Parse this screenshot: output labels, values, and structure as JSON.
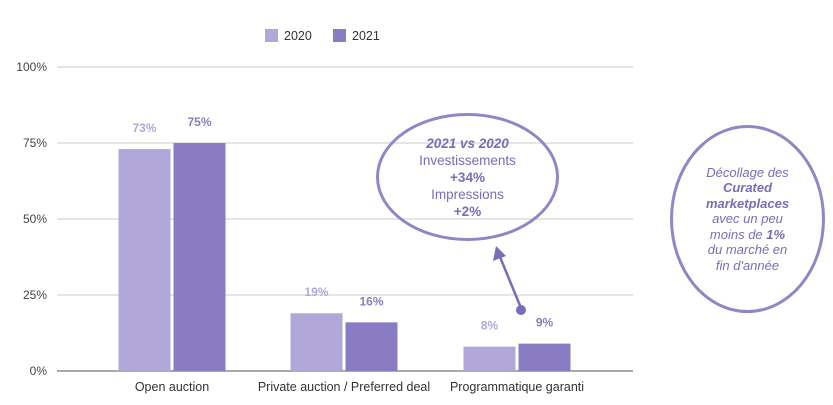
{
  "chart_data": {
    "type": "bar",
    "categories": [
      "Open auction",
      "Private auction / Preferred deal",
      "Programmatique garanti"
    ],
    "series": [
      {
        "name": "2020",
        "values": [
          73,
          19,
          8
        ],
        "labels": [
          "73%",
          "19%",
          "8%"
        ]
      },
      {
        "name": "2021",
        "values": [
          75,
          16,
          9
        ],
        "labels": [
          "75%",
          "16%",
          "9%"
        ]
      }
    ],
    "ylim": [
      0,
      100
    ],
    "yticks": [
      0,
      25,
      50,
      75,
      100
    ],
    "ytick_labels": [
      "0%",
      "25%",
      "50%",
      "75%",
      "100%"
    ],
    "legend_position": "top-center",
    "grid": true,
    "colors": {
      "2020": "#b2a7d9",
      "2021": "#8a7cc2",
      "label_2020": "#b2a7d9",
      "label_2021": "#8a7cc2"
    }
  },
  "callouts": {
    "compare": {
      "title": "2021 vs 2020",
      "line1": "Investissements",
      "line2": "+34%",
      "line3": "Impressions",
      "line4": "+2%"
    },
    "curated": {
      "l1": "Décollage des",
      "l2": "Curated",
      "l3": "marketplaces",
      "l4": "avec un peu",
      "l5a": "moins de ",
      "l5b": "1%",
      "l6": "du marché en",
      "l7": "fin d'année"
    }
  }
}
